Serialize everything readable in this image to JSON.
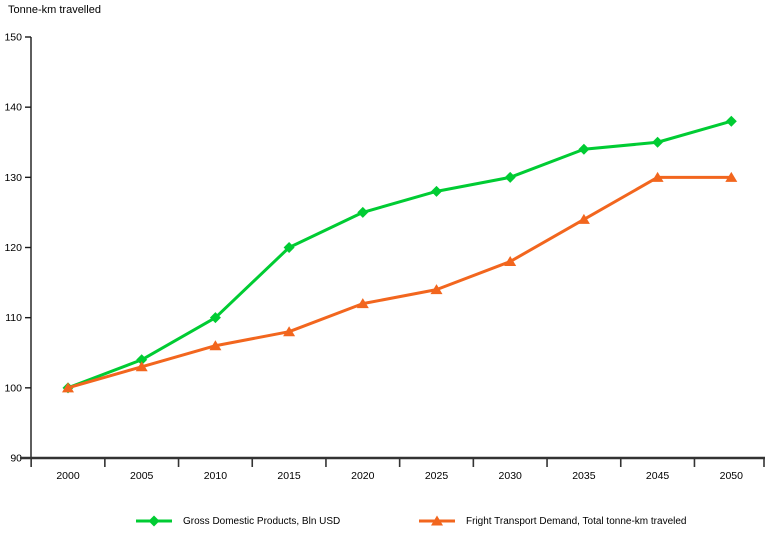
{
  "chart_data": {
    "type": "line",
    "title": "Tonne-km travelled",
    "categories": [
      "2000",
      "2005",
      "2010",
      "2015",
      "2020",
      "2025",
      "2030",
      "2035",
      "2045",
      "2050"
    ],
    "series": [
      {
        "name": "Gross Domestic Products, Bln USD",
        "color": "#00CC33",
        "marker": "diamond",
        "values": [
          100,
          104,
          110,
          120,
          125,
          128,
          130,
          134,
          135,
          138
        ]
      },
      {
        "name": "Fright Transport Demand, Total tonne-km traveled",
        "color": "#F2661E",
        "marker": "triangle",
        "values": [
          100,
          103,
          106,
          108,
          112,
          114,
          118,
          124,
          130,
          130
        ]
      }
    ],
    "ylim": [
      90,
      150
    ],
    "yticks": [
      90,
      100,
      110,
      120,
      130,
      140,
      150
    ],
    "xlabel": "",
    "ylabel": "",
    "grid": false,
    "legend_position": "bottom",
    "y_axis_color": "#1a1a1a",
    "x_axis_color": "#333333"
  }
}
